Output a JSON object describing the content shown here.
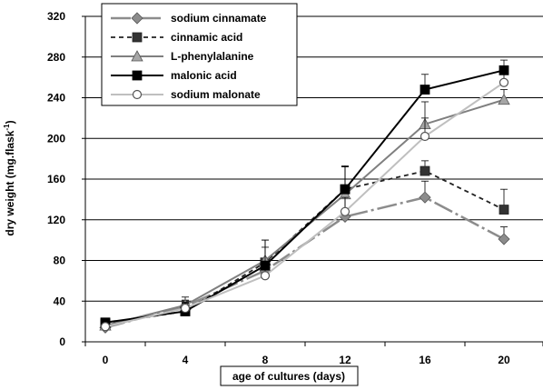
{
  "chart_data": {
    "type": "line",
    "xlabel": "age of cultures (days)",
    "ylabel": "dry weight (mg.flask",
    "ylabel_sup": "-1",
    "ylabel_close": ")",
    "x": [
      0,
      4,
      8,
      12,
      16,
      20
    ],
    "x_ticks": [
      "0",
      "4",
      "8",
      "12",
      "16",
      "20"
    ],
    "y_ticks": [
      "0",
      "40",
      "80",
      "120",
      "160",
      "200",
      "240",
      "280",
      "320"
    ],
    "ylim": [
      0,
      320
    ],
    "grid": true,
    "legend_position": "top-left",
    "series": [
      {
        "name": "sodium cinnamate",
        "values": [
          14,
          35,
          70,
          123,
          142,
          101
        ],
        "error": [
          3,
          6,
          12,
          30,
          16,
          12
        ],
        "color": "#8c8c8c",
        "dash": "22,4,3,4",
        "width": 2.5,
        "marker": "diamond",
        "marker_fill": "#8c8c8c"
      },
      {
        "name": "cinnamic acid",
        "values": [
          18,
          30,
          78,
          150,
          168,
          130
        ],
        "error": [
          4,
          10,
          22,
          22,
          10,
          20
        ],
        "color": "#222222",
        "dash": "5,4",
        "width": 1.8,
        "marker": "square",
        "marker_fill": "#333333"
      },
      {
        "name": "L-phenylalanine",
        "values": [
          16,
          36,
          80,
          145,
          214,
          238
        ],
        "error": [
          3,
          8,
          20,
          28,
          22,
          10
        ],
        "color": "#7f7f7f",
        "dash": "",
        "width": 2,
        "marker": "triangle",
        "marker_fill": "#a6a6a6"
      },
      {
        "name": "malonic acid",
        "values": [
          19,
          30,
          75,
          150,
          248,
          267
        ],
        "error": [
          4,
          8,
          18,
          22,
          15,
          10
        ],
        "color": "#000000",
        "dash": "",
        "width": 2,
        "marker": "square",
        "marker_fill": "#000000"
      },
      {
        "name": "sodium malonate",
        "values": [
          15,
          33,
          65,
          128,
          202,
          255
        ],
        "error": [
          3,
          6,
          10,
          14,
          18,
          10
        ],
        "color": "#bfbfbf",
        "dash": "",
        "width": 2,
        "marker": "circle",
        "marker_fill": "#ffffff"
      }
    ]
  }
}
